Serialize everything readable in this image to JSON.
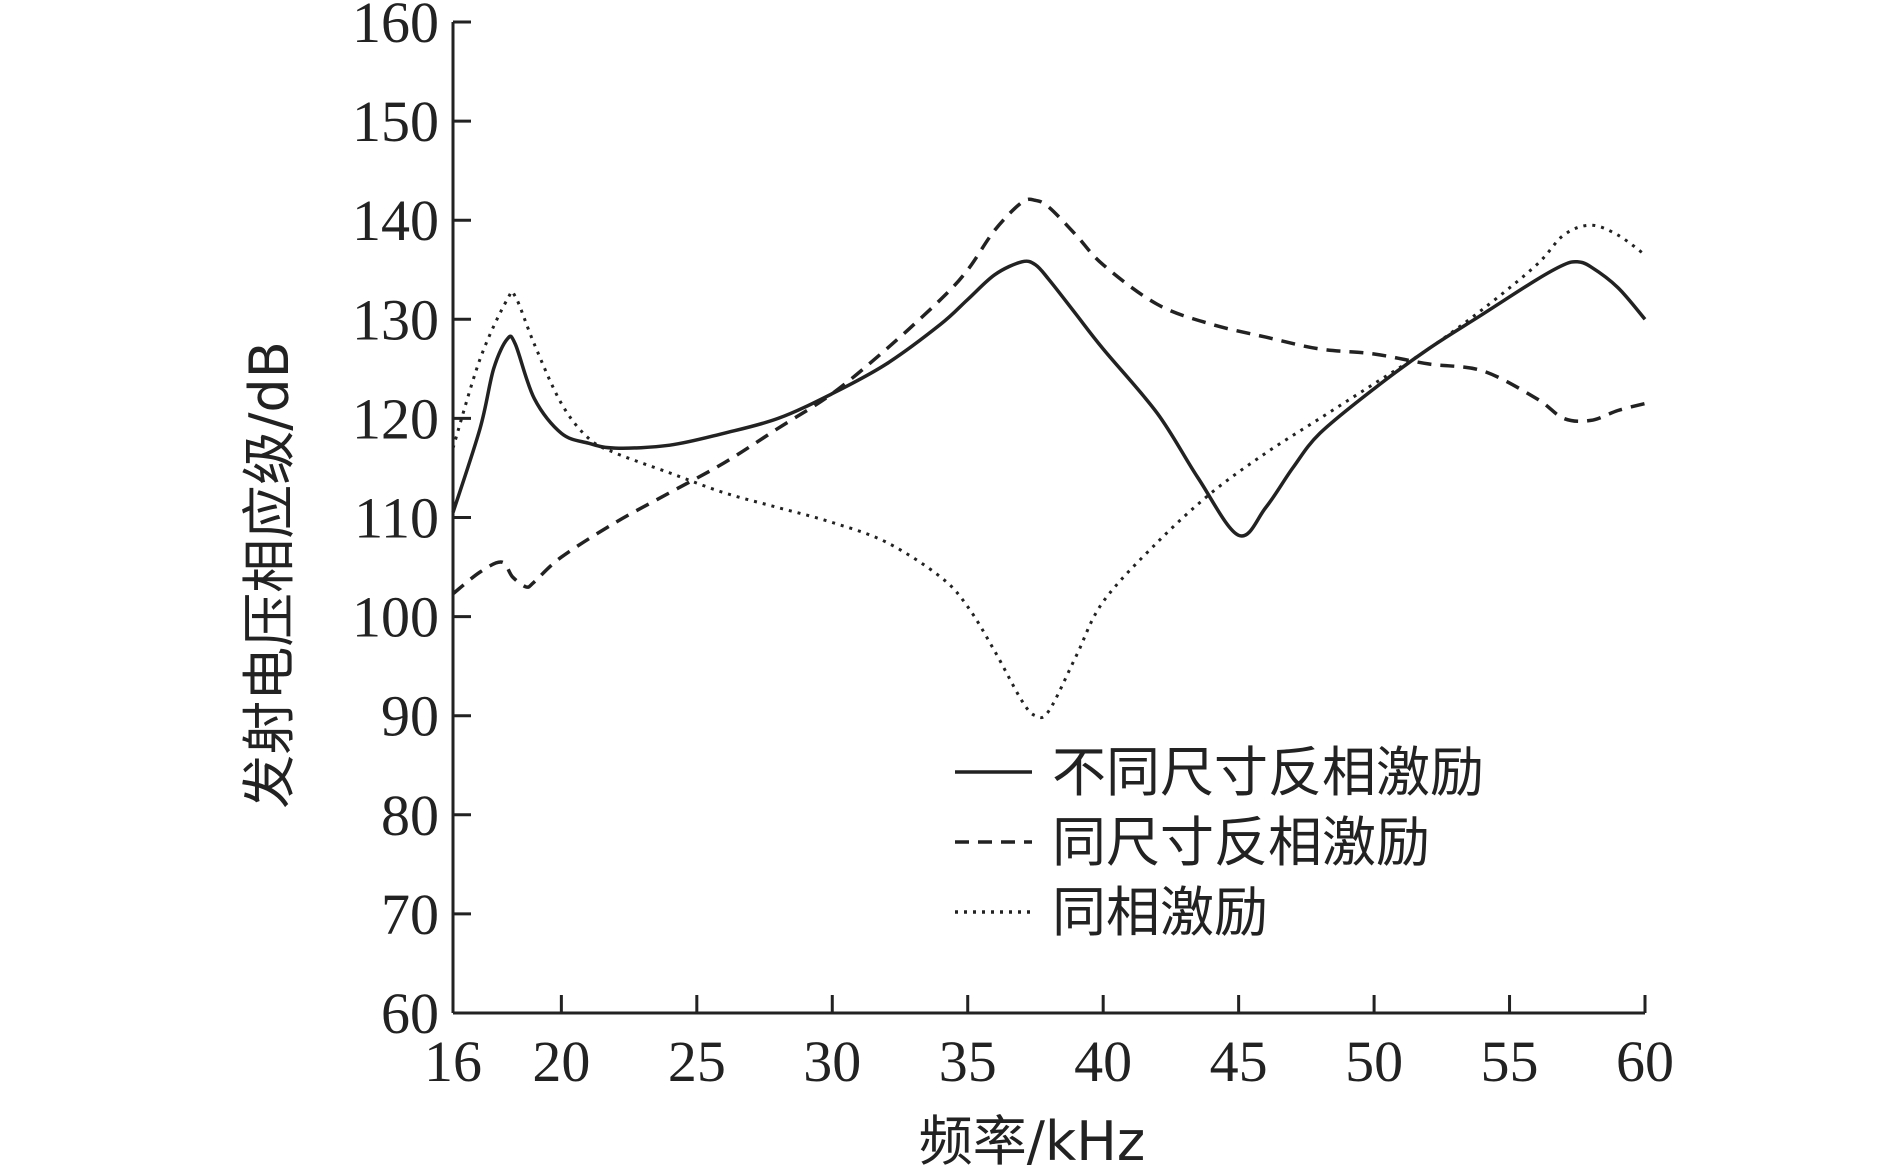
{
  "chart_data": {
    "type": "line",
    "xlabel": "频率/kHz",
    "ylabel": "发射电压相应级/dB",
    "xlim": [
      16,
      60
    ],
    "ylim": [
      60,
      160
    ],
    "x_ticks": [
      16,
      20,
      25,
      30,
      35,
      40,
      45,
      50,
      55,
      60
    ],
    "y_ticks": [
      60,
      70,
      80,
      90,
      100,
      110,
      120,
      130,
      140,
      150,
      160
    ],
    "grid": false,
    "legend_position": "bottom-right",
    "series": [
      {
        "name": "不同尺寸反相激励",
        "style": "solid",
        "x": [
          16,
          17,
          17.5,
          18,
          18.3,
          19,
          20,
          21,
          22,
          24,
          26,
          28,
          30,
          32,
          34,
          35,
          36,
          37,
          37.5,
          38,
          39,
          40,
          42,
          43.5,
          45,
          46,
          47,
          48,
          50,
          52,
          54,
          56,
          57,
          57.5,
          58,
          59,
          60
        ],
        "y": [
          110.5,
          119,
          125,
          128,
          127.5,
          122,
          118.5,
          117.5,
          117,
          117.3,
          118.5,
          120,
          122.5,
          125.5,
          129.5,
          132,
          134.5,
          135.8,
          135.5,
          134,
          130.5,
          127,
          120.5,
          114,
          108.2,
          111,
          115,
          118.5,
          123,
          127,
          130.5,
          134,
          135.5,
          135.8,
          135.3,
          133.2,
          130
        ]
      },
      {
        "name": "同尺寸反相激励",
        "style": "dashed",
        "x": [
          16,
          17,
          17.8,
          18.2,
          18.7,
          19,
          20,
          22,
          24,
          26,
          28,
          30,
          32,
          34,
          35,
          36,
          37,
          37.5,
          38,
          39,
          40,
          42,
          44,
          46,
          48,
          50,
          52,
          54,
          56,
          57,
          58,
          59,
          60
        ],
        "y": [
          102.3,
          104.5,
          105.5,
          104,
          103,
          103.5,
          106,
          109.5,
          112.5,
          115.5,
          119,
          122.5,
          127,
          132,
          135,
          139,
          141.8,
          142,
          141.3,
          138.5,
          135.5,
          131.5,
          129.5,
          128.2,
          127,
          126.5,
          125.5,
          124.8,
          122,
          120,
          119.8,
          120.8,
          121.5
        ]
      },
      {
        "name": "同相激励",
        "style": "dotted",
        "x": [
          16,
          17,
          18,
          18.3,
          19,
          20,
          21,
          22,
          24,
          26,
          28,
          30,
          32,
          34,
          35,
          36,
          37,
          37.5,
          38,
          39,
          40,
          42,
          44,
          46,
          48,
          50,
          52,
          54,
          56,
          57,
          58,
          59,
          60
        ],
        "y": [
          117,
          126,
          132,
          132.3,
          127.5,
          121.5,
          118,
          116.5,
          114.5,
          112.5,
          111,
          109.5,
          107.5,
          104,
          101,
          96.5,
          91.5,
          90,
          90.5,
          96,
          101.5,
          107.5,
          112.5,
          116.5,
          120,
          123.5,
          127,
          131,
          135.5,
          138.5,
          139.5,
          138.5,
          136.5
        ]
      }
    ]
  }
}
